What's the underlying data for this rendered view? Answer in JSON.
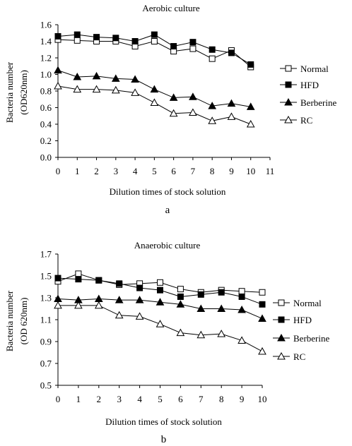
{
  "chart_data": [
    {
      "type": "line",
      "title": "Aerobic culture",
      "xlabel": "Dilution times of stock solution",
      "ylabel": "Bacteria number (OD620nm)",
      "ylabel_lines": [
        "Bacteria number",
        "(OD620nm)"
      ],
      "panel_label": "a",
      "x": [
        0,
        1,
        2,
        3,
        4,
        5,
        6,
        7,
        8,
        9,
        10
      ],
      "x_ticks": [
        "0",
        "1",
        "2",
        "3",
        "4",
        "5",
        "6",
        "7",
        "8",
        "9",
        "10",
        "11"
      ],
      "y_ticks": [
        "0.0",
        "0.2",
        "0.4",
        "0.6",
        "0.8",
        "1.0",
        "1.2",
        "1.4",
        "1.6"
      ],
      "xlim": [
        0,
        11
      ],
      "ylim": [
        0,
        1.6
      ],
      "grid": false,
      "legend_position": "right",
      "series": [
        {
          "name": "Normal",
          "marker": "square-open",
          "values": [
            1.42,
            1.41,
            1.4,
            1.4,
            1.34,
            1.4,
            1.28,
            1.31,
            1.19,
            1.29,
            1.09
          ]
        },
        {
          "name": "HFD",
          "marker": "square-filled",
          "values": [
            1.46,
            1.48,
            1.45,
            1.44,
            1.4,
            1.48,
            1.34,
            1.39,
            1.3,
            1.26,
            1.12
          ]
        },
        {
          "name": "Berberine",
          "marker": "triangle-filled",
          "values": [
            1.05,
            0.97,
            0.98,
            0.95,
            0.94,
            0.82,
            0.72,
            0.73,
            0.62,
            0.65,
            0.61
          ]
        },
        {
          "name": "RC",
          "marker": "triangle-open",
          "values": [
            0.86,
            0.82,
            0.82,
            0.81,
            0.78,
            0.66,
            0.53,
            0.54,
            0.44,
            0.49,
            0.4
          ]
        }
      ]
    },
    {
      "type": "line",
      "title": "Anaerobic culture",
      "xlabel": "Dilution times of stock solution",
      "ylabel": "Bacteria number (OD 620nm)",
      "ylabel_lines": [
        "Bacteria number",
        "(OD 620nm)"
      ],
      "panel_label": "b",
      "x": [
        0,
        1,
        2,
        3,
        4,
        5,
        6,
        7,
        8,
        9,
        10
      ],
      "x_ticks": [
        "0",
        "1",
        "2",
        "3",
        "4",
        "5",
        "6",
        "7",
        "8",
        "9",
        "10"
      ],
      "y_ticks": [
        "0.5",
        "0.7",
        "0.9",
        "1.1",
        "1.3",
        "1.5",
        "1.7"
      ],
      "xlim": [
        0,
        10
      ],
      "ylim": [
        0.5,
        1.7
      ],
      "grid": false,
      "legend_position": "right",
      "series": [
        {
          "name": "Normal",
          "marker": "square-open",
          "values": [
            1.45,
            1.52,
            1.46,
            1.42,
            1.43,
            1.44,
            1.38,
            1.35,
            1.37,
            1.36,
            1.35
          ]
        },
        {
          "name": "HFD",
          "marker": "square-filled",
          "values": [
            1.48,
            1.47,
            1.46,
            1.43,
            1.39,
            1.37,
            1.31,
            1.33,
            1.35,
            1.31,
            1.24
          ]
        },
        {
          "name": "Berberine",
          "marker": "triangle-filled",
          "values": [
            1.29,
            1.28,
            1.29,
            1.28,
            1.28,
            1.26,
            1.24,
            1.2,
            1.2,
            1.19,
            1.11
          ]
        },
        {
          "name": "RC",
          "marker": "triangle-open",
          "values": [
            1.23,
            1.23,
            1.23,
            1.14,
            1.13,
            1.06,
            0.98,
            0.96,
            0.97,
            0.91,
            0.81
          ]
        }
      ]
    }
  ]
}
